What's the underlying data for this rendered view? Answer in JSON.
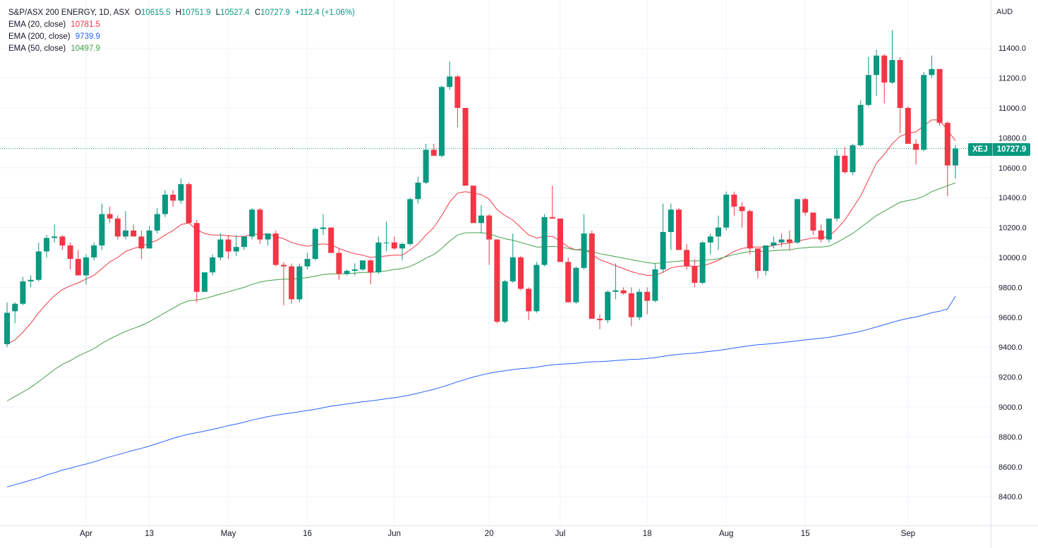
{
  "legend": {
    "title": "S&P/ASX 200 ENERGY, 1D, ASX",
    "ohlc": {
      "o_label": "O",
      "o": "10615.5",
      "h_label": "H",
      "h": "10751.9",
      "l_label": "L",
      "l": "10527.4",
      "c_label": "C",
      "c": "10727.9"
    },
    "change": "+112.4 (+1.06%)",
    "ema": [
      {
        "label": "EMA (20, close)",
        "value": "10781.5"
      },
      {
        "label": "EMA (200, close)",
        "value": "9739.9"
      },
      {
        "label": "EMA (50, close)",
        "value": "10497.9"
      }
    ]
  },
  "axis": {
    "currency": "AUD"
  },
  "price_tag": {
    "symbol": "XEJ",
    "value": "10727.9"
  },
  "colors": {
    "up": "#089981",
    "down": "#f23645",
    "ema20": "#f23645",
    "ema50": "#43a047",
    "ema200": "#2962ff",
    "grid": "#f0f3fa"
  },
  "chart_data": {
    "type": "candlestick",
    "ylim": [
      8300,
      11600
    ],
    "y_ticks": [
      8400,
      8600,
      8800,
      9000,
      9200,
      9400,
      9600,
      9800,
      10000,
      10200,
      10400,
      10600,
      10800,
      11000,
      11200,
      11400
    ],
    "x_ticks": [
      {
        "label": "Apr",
        "index": 10
      },
      {
        "label": "13",
        "index": 18
      },
      {
        "label": "May",
        "index": 28
      },
      {
        "label": "16",
        "index": 38
      },
      {
        "label": "Jun",
        "index": 49
      },
      {
        "label": "20",
        "index": 61
      },
      {
        "label": "Jul",
        "index": 70
      },
      {
        "label": "18",
        "index": 81
      },
      {
        "label": "Aug",
        "index": 91
      },
      {
        "label": "15",
        "index": 101
      },
      {
        "label": "Sep",
        "index": 114
      }
    ],
    "candles": [
      [
        9420,
        9700,
        9400,
        9630
      ],
      [
        9640,
        9700,
        9560,
        9690
      ],
      [
        9690,
        9870,
        9680,
        9840
      ],
      [
        9840,
        9880,
        9800,
        9850
      ],
      [
        9850,
        10100,
        9840,
        10040
      ],
      [
        10040,
        10150,
        10000,
        10130
      ],
      [
        10130,
        10220,
        10100,
        10140
      ],
      [
        10140,
        10150,
        10050,
        10080
      ],
      [
        10080,
        10100,
        9920,
        9990
      ],
      [
        9990,
        10050,
        9880,
        9880
      ],
      [
        9880,
        10020,
        9820,
        10000
      ],
      [
        10000,
        10100,
        9980,
        10080
      ],
      [
        10080,
        10360,
        10050,
        10290
      ],
      [
        10290,
        10340,
        10230,
        10260
      ],
      [
        10260,
        10280,
        10120,
        10140
      ],
      [
        10140,
        10310,
        10120,
        10180
      ],
      [
        10180,
        10220,
        10140,
        10140
      ],
      [
        10140,
        10180,
        9990,
        10060
      ],
      [
        10060,
        10210,
        10060,
        10180
      ],
      [
        10180,
        10330,
        10160,
        10290
      ],
      [
        10290,
        10450,
        10270,
        10420
      ],
      [
        10420,
        10450,
        10340,
        10380
      ],
      [
        10380,
        10530,
        10360,
        10490
      ],
      [
        10490,
        10500,
        10230,
        10230
      ],
      [
        10230,
        10250,
        9700,
        9770
      ],
      [
        9770,
        9900,
        9770,
        9900
      ],
      [
        9900,
        10020,
        9880,
        10000
      ],
      [
        10000,
        10160,
        9980,
        10120
      ],
      [
        10120,
        10150,
        9990,
        10040
      ],
      [
        10040,
        10150,
        10010,
        10070
      ],
      [
        10070,
        10140,
        10050,
        10140
      ],
      [
        10140,
        10330,
        10120,
        10320
      ],
      [
        10320,
        10330,
        10090,
        10120
      ],
      [
        10120,
        10160,
        10080,
        10160
      ],
      [
        10160,
        10180,
        9940,
        9950
      ],
      [
        9950,
        9970,
        9680,
        9940
      ],
      [
        9940,
        9960,
        9690,
        9720
      ],
      [
        9720,
        9960,
        9700,
        9940
      ],
      [
        9940,
        10030,
        9920,
        9990
      ],
      [
        9990,
        10200,
        9980,
        10190
      ],
      [
        10190,
        10290,
        10150,
        10200
      ],
      [
        10200,
        10200,
        10030,
        10030
      ],
      [
        10030,
        10060,
        9850,
        9890
      ],
      [
        9890,
        9920,
        9880,
        9910
      ],
      [
        9910,
        9960,
        9880,
        9920
      ],
      [
        9920,
        9980,
        9910,
        9980
      ],
      [
        9980,
        9990,
        9820,
        9900
      ],
      [
        9900,
        10140,
        9890,
        10100
      ],
      [
        10100,
        10240,
        10040,
        10100
      ],
      [
        10100,
        10140,
        10050,
        10060
      ],
      [
        10060,
        10100,
        9980,
        10090
      ],
      [
        10090,
        10400,
        10080,
        10390
      ],
      [
        10390,
        10540,
        10360,
        10500
      ],
      [
        10500,
        10760,
        10490,
        10720
      ],
      [
        10720,
        10760,
        10680,
        10680
      ],
      [
        10680,
        11150,
        10670,
        11140
      ],
      [
        11140,
        11310,
        11120,
        11210
      ],
      [
        11210,
        11220,
        10870,
        11000
      ],
      [
        11000,
        11000,
        10480,
        10480
      ],
      [
        10480,
        10480,
        10230,
        10230
      ],
      [
        10230,
        10350,
        10160,
        10280
      ],
      [
        10280,
        10290,
        9950,
        10120
      ],
      [
        10120,
        10120,
        9560,
        9570
      ],
      [
        9570,
        9850,
        9560,
        9840
      ],
      [
        9840,
        10160,
        9830,
        10000
      ],
      [
        10000,
        10010,
        9780,
        9790
      ],
      [
        9790,
        9800,
        9580,
        9640
      ],
      [
        9640,
        9970,
        9630,
        9950
      ],
      [
        9950,
        10290,
        9940,
        10270
      ],
      [
        10270,
        10480,
        10260,
        10260
      ],
      [
        10260,
        10260,
        9970,
        9970
      ],
      [
        9970,
        10000,
        9700,
        9700
      ],
      [
        9700,
        9940,
        9690,
        9930
      ],
      [
        9930,
        10290,
        9920,
        10160
      ],
      [
        10160,
        10180,
        9590,
        9590
      ],
      [
        9590,
        9620,
        9520,
        9580
      ],
      [
        9580,
        9780,
        9560,
        9770
      ],
      [
        9770,
        9960,
        9720,
        9780
      ],
      [
        9780,
        9800,
        9750,
        9760
      ],
      [
        9760,
        9800,
        9540,
        9600
      ],
      [
        9600,
        9790,
        9580,
        9770
      ],
      [
        9770,
        9800,
        9620,
        9710
      ],
      [
        9710,
        9960,
        9700,
        9920
      ],
      [
        9920,
        10360,
        9900,
        10170
      ],
      [
        10170,
        10360,
        10050,
        10320
      ],
      [
        10320,
        10330,
        10050,
        10050
      ],
      [
        10050,
        10090,
        9920,
        9940
      ],
      [
        9940,
        9990,
        9800,
        9830
      ],
      [
        9830,
        10110,
        9820,
        10100
      ],
      [
        10100,
        10160,
        10020,
        10140
      ],
      [
        10140,
        10280,
        10050,
        10200
      ],
      [
        10200,
        10440,
        10180,
        10420
      ],
      [
        10420,
        10440,
        10280,
        10340
      ],
      [
        10340,
        10370,
        10200,
        10310
      ],
      [
        10310,
        10320,
        10020,
        10060
      ],
      [
        10060,
        10060,
        9860,
        9910
      ],
      [
        9910,
        10080,
        9880,
        10080
      ],
      [
        10080,
        10140,
        10060,
        10100
      ],
      [
        10100,
        10160,
        10070,
        10120
      ],
      [
        10120,
        10180,
        10050,
        10100
      ],
      [
        10100,
        10390,
        10090,
        10390
      ],
      [
        10390,
        10400,
        10280,
        10300
      ],
      [
        10300,
        10300,
        10150,
        10180
      ],
      [
        10180,
        10220,
        10100,
        10120
      ],
      [
        10120,
        10250,
        10100,
        10260
      ],
      [
        10260,
        10720,
        10240,
        10680
      ],
      [
        10680,
        10740,
        10560,
        10570
      ],
      [
        10570,
        10760,
        10550,
        10750
      ],
      [
        10750,
        11050,
        10740,
        11020
      ],
      [
        11020,
        11340,
        11010,
        11220
      ],
      [
        11220,
        11390,
        11080,
        11350
      ],
      [
        11350,
        11360,
        11030,
        11170
      ],
      [
        11170,
        11520,
        11160,
        11320
      ],
      [
        11320,
        11340,
        10830,
        11000
      ],
      [
        11000,
        11010,
        10760,
        10760
      ],
      [
        10760,
        10790,
        10620,
        10720
      ],
      [
        10720,
        11240,
        10710,
        11220
      ],
      [
        11220,
        11350,
        11200,
        11260
      ],
      [
        11260,
        11260,
        10880,
        10900
      ],
      [
        10900,
        10910,
        10410,
        10615
      ],
      [
        10615,
        10752,
        10527,
        10728
      ]
    ],
    "series": [
      {
        "name": "EMA (20, close)",
        "color": "#f23645",
        "values": [
          9420,
          9448,
          9500,
          9560,
          9630,
          9690,
          9745,
          9785,
          9810,
          9830,
          9855,
          9880,
          9925,
          9970,
          10000,
          10040,
          10060,
          10075,
          10095,
          10115,
          10150,
          10180,
          10220,
          10230,
          10185,
          10160,
          10150,
          10150,
          10145,
          10140,
          10140,
          10155,
          10155,
          10155,
          10140,
          10125,
          10100,
          10085,
          10075,
          10085,
          10090,
          10085,
          10060,
          10040,
          10025,
          10015,
          10000,
          10005,
          10010,
          10015,
          10015,
          10050,
          10090,
          10150,
          10200,
          10280,
          10370,
          10430,
          10440,
          10430,
          10420,
          10390,
          10320,
          10280,
          10250,
          10200,
          10150,
          10130,
          10140,
          10140,
          10110,
          10070,
          10050,
          10060,
          10020,
          9985,
          9965,
          9945,
          9925,
          9905,
          9890,
          9880,
          9880,
          9900,
          9930,
          9940,
          9945,
          9940,
          9945,
          9960,
          9980,
          10010,
          10040,
          10060,
          10070,
          10070,
          10070,
          10080,
          10090,
          10095,
          10110,
          10120,
          10130,
          10130,
          10140,
          10190,
          10250,
          10330,
          10410,
          10520,
          10630,
          10690,
          10760,
          10810,
          10830,
          10840,
          10880,
          10920,
          10920,
          10850,
          10781
        ]
      },
      {
        "name": "EMA (50, close)",
        "color": "#43a047",
        "values": [
          9040,
          9070,
          9100,
          9130,
          9170,
          9210,
          9250,
          9285,
          9310,
          9340,
          9365,
          9390,
          9425,
          9455,
          9480,
          9505,
          9525,
          9545,
          9570,
          9600,
          9630,
          9660,
          9690,
          9710,
          9715,
          9725,
          9740,
          9755,
          9770,
          9785,
          9800,
          9820,
          9835,
          9845,
          9850,
          9855,
          9855,
          9860,
          9865,
          9875,
          9885,
          9890,
          9890,
          9890,
          9895,
          9900,
          9900,
          9905,
          9910,
          9920,
          9925,
          9940,
          9965,
          9995,
          10020,
          10060,
          10110,
          10150,
          10165,
          10165,
          10165,
          10160,
          10140,
          10125,
          10115,
          10100,
          10085,
          10070,
          10070,
          10075,
          10070,
          10060,
          10050,
          10050,
          10040,
          10025,
          10015,
          10005,
          9995,
          9985,
          9975,
          9965,
          9960,
          9965,
          9970,
          9975,
          9980,
          9975,
          9980,
          9985,
          9990,
          10005,
          10020,
          10030,
          10040,
          10040,
          10040,
          10045,
          10050,
          10050,
          10060,
          10065,
          10070,
          10070,
          10075,
          10100,
          10130,
          10160,
          10200,
          10240,
          10280,
          10310,
          10340,
          10370,
          10380,
          10390,
          10410,
          10440,
          10460,
          10480,
          10497.9
        ]
      },
      {
        "name": "EMA (200, close)",
        "color": "#2962ff",
        "values": [
          8465,
          8480,
          8495,
          8510,
          8525,
          8545,
          8560,
          8578,
          8590,
          8605,
          8618,
          8633,
          8650,
          8666,
          8680,
          8695,
          8710,
          8723,
          8738,
          8755,
          8772,
          8790,
          8805,
          8818,
          8828,
          8838,
          8850,
          8862,
          8875,
          8886,
          8898,
          8912,
          8924,
          8935,
          8945,
          8953,
          8960,
          8968,
          8976,
          8985,
          8995,
          9005,
          9012,
          9020,
          9027,
          9035,
          9040,
          9047,
          9055,
          9062,
          9070,
          9080,
          9092,
          9105,
          9118,
          9133,
          9150,
          9168,
          9185,
          9200,
          9213,
          9225,
          9235,
          9242,
          9250,
          9256,
          9260,
          9266,
          9275,
          9282,
          9286,
          9288,
          9292,
          9298,
          9302,
          9303,
          9306,
          9310,
          9314,
          9318,
          9320,
          9324,
          9330,
          9338,
          9346,
          9352,
          9356,
          9360,
          9366,
          9372,
          9378,
          9386,
          9394,
          9402,
          9410,
          9416,
          9420,
          9425,
          9430,
          9436,
          9442,
          9448,
          9454,
          9460,
          9466,
          9475,
          9485,
          9495,
          9505,
          9520,
          9535,
          9550,
          9566,
          9580,
          9592,
          9602,
          9615,
          9630,
          9640,
          9655,
          9739.9
        ]
      }
    ]
  }
}
